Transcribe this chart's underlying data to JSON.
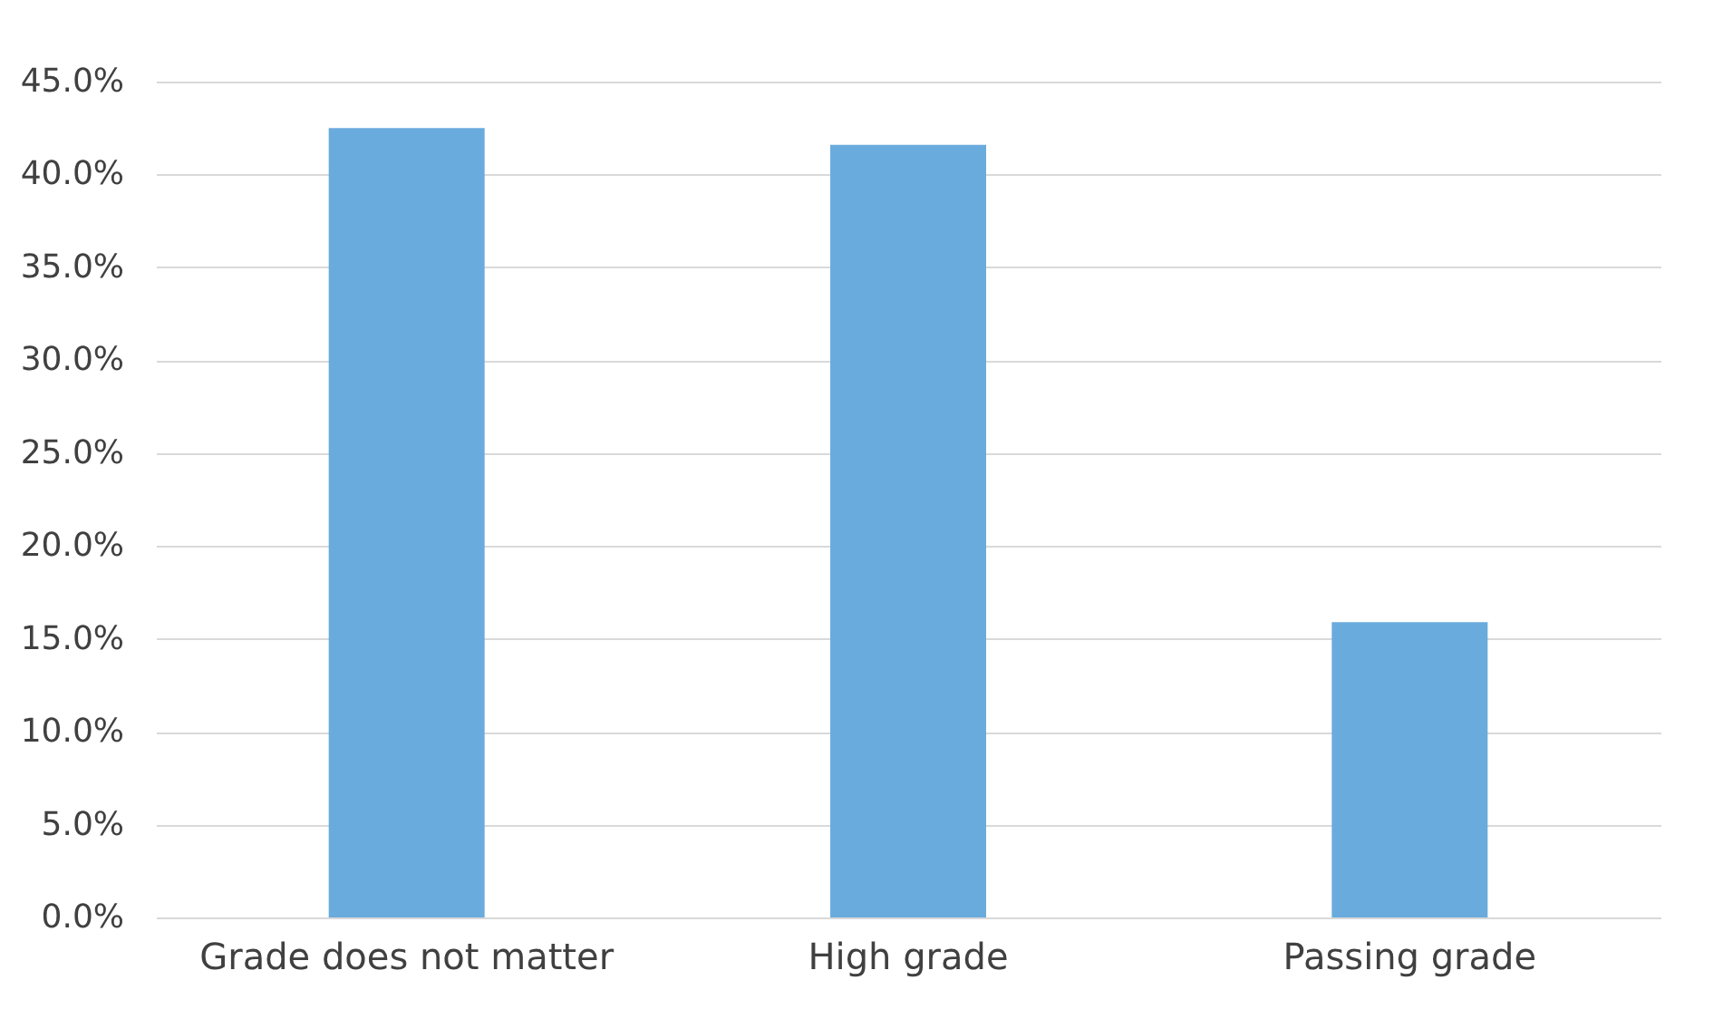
{
  "chart_data": {
    "type": "bar",
    "categories": [
      "Grade does not matter",
      "High grade",
      "Passing grade"
    ],
    "values": [
      42.5,
      41.6,
      15.9
    ],
    "color": "#6aabdd",
    "ylim": [
      0,
      45
    ],
    "yticks": [
      {
        "value": 0,
        "label": "0.0%"
      },
      {
        "value": 5,
        "label": "5.0%"
      },
      {
        "value": 10,
        "label": "10.0%"
      },
      {
        "value": 15,
        "label": "15.0%"
      },
      {
        "value": 20,
        "label": "20.0%"
      },
      {
        "value": 25,
        "label": "25.0%"
      },
      {
        "value": 30,
        "label": "30.0%"
      },
      {
        "value": 35,
        "label": "35.0%"
      },
      {
        "value": 40,
        "label": "40.0%"
      },
      {
        "value": 45,
        "label": "45.0%"
      }
    ],
    "grid": "y"
  }
}
